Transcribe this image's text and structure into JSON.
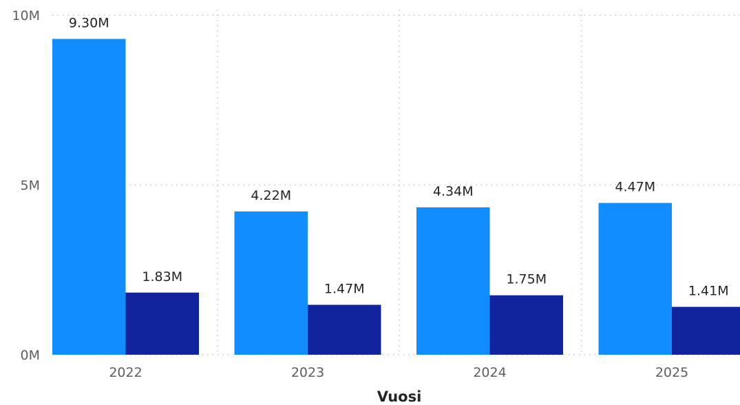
{
  "chart_data": {
    "type": "bar",
    "categories": [
      "2022",
      "2023",
      "2024",
      "2025"
    ],
    "series": [
      {
        "values": [
          9.3,
          4.22,
          4.34,
          4.47
        ],
        "labels": [
          "9.30M",
          "4.22M",
          "4.34M",
          "4.47M"
        ],
        "color": "#118DFF"
      },
      {
        "values": [
          1.83,
          1.47,
          1.75,
          1.41
        ],
        "labels": [
          "1.83M",
          "1.47M",
          "1.75M",
          "1.41M"
        ],
        "color": "#12239E"
      }
    ],
    "xlabel": "Vuosi",
    "ylabel": "",
    "ylim": [
      0,
      10
    ],
    "yticks": [
      {
        "value": 0,
        "label": "0M"
      },
      {
        "value": 5,
        "label": "5M"
      },
      {
        "value": 10,
        "label": "10M"
      }
    ],
    "grid": true,
    "legend": "none"
  }
}
